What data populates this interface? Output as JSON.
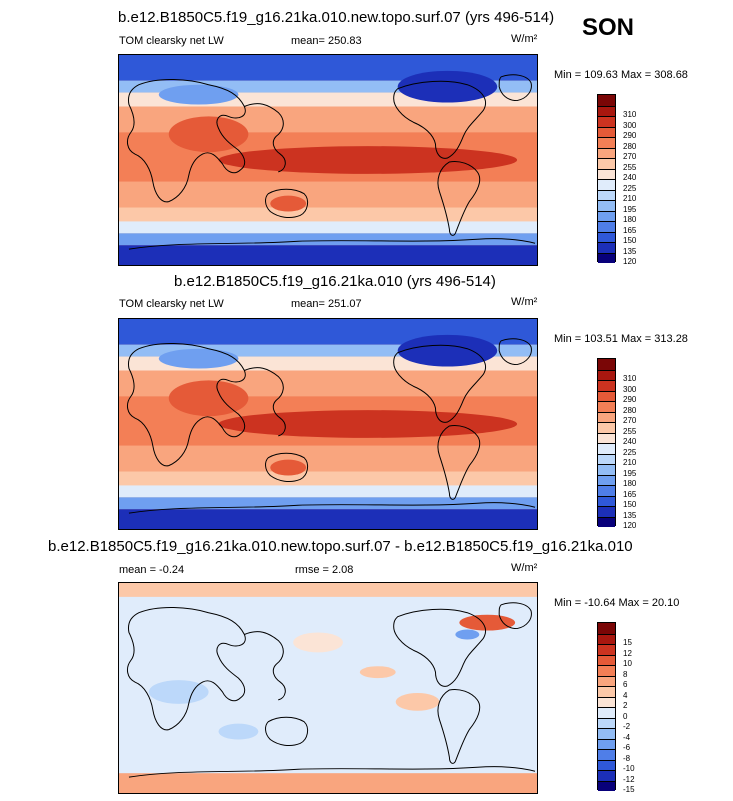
{
  "season": "SON",
  "panels": [
    {
      "title": "b.e12.B1850C5.f19_g16.21ka.010.new.topo.surf.07 (yrs 496-514)",
      "left_label": "TOM clearsky net LW",
      "stat_label": "mean= 250.83",
      "extra_label": "",
      "units": "W/m²",
      "minmax": "Min = 109.63 Max = 308.68"
    },
    {
      "title": "b.e12.B1850C5.f19_g16.21ka.010 (yrs 496-514)",
      "left_label": "TOM clearsky net LW",
      "stat_label": "mean= 251.07",
      "extra_label": "",
      "units": "W/m²",
      "minmax": "Min = 103.51 Max = 313.28"
    },
    {
      "title": "b.e12.B1850C5.f19_g16.21ka.010.new.topo.surf.07 - b.e12.B1850C5.f19_g16.21ka.010",
      "left_label": "mean =  -0.24",
      "stat_label": "rmse =   2.08",
      "extra_label": "",
      "units": "W/m²",
      "minmax": "Min = -10.64 Max = 20.10"
    }
  ],
  "chart_data": [
    {
      "type": "heatmap",
      "title": "b.e12.B1850C5.f19_g16.21ka.010.new.topo.surf.07 (yrs 496-514)",
      "variable": "TOM clearsky net LW",
      "units": "W/m²",
      "mean": 250.83,
      "min": 109.63,
      "max": 308.68,
      "levels": [
        120,
        135,
        150,
        165,
        180,
        195,
        210,
        225,
        240,
        255,
        270,
        280,
        290,
        300,
        310
      ],
      "colors": [
        "#08007a",
        "#1c2fb8",
        "#2f58d8",
        "#4f7ee8",
        "#6f9ff0",
        "#93bdf5",
        "#bcd8fa",
        "#e0ecfb",
        "#fbe4d6",
        "#fcc8a8",
        "#f9a57e",
        "#f37f56",
        "#e55a38",
        "#cc3320",
        "#a8170f",
        "#7a0606"
      ]
    },
    {
      "type": "heatmap",
      "title": "b.e12.B1850C5.f19_g16.21ka.010 (yrs 496-514)",
      "variable": "TOM clearsky net LW",
      "units": "W/m²",
      "mean": 251.07,
      "min": 103.51,
      "max": 313.28,
      "levels": [
        120,
        135,
        150,
        165,
        180,
        195,
        210,
        225,
        240,
        255,
        270,
        280,
        290,
        300,
        310
      ],
      "colors": [
        "#08007a",
        "#1c2fb8",
        "#2f58d8",
        "#4f7ee8",
        "#6f9ff0",
        "#93bdf5",
        "#bcd8fa",
        "#e0ecfb",
        "#fbe4d6",
        "#fcc8a8",
        "#f9a57e",
        "#f37f56",
        "#e55a38",
        "#cc3320",
        "#a8170f",
        "#7a0606"
      ]
    },
    {
      "type": "heatmap",
      "title": "b.e12.B1850C5.f19_g16.21ka.010.new.topo.surf.07 - b.e12.B1850C5.f19_g16.21ka.010",
      "units": "W/m²",
      "mean": -0.24,
      "rmse": 2.08,
      "min": -10.64,
      "max": 20.1,
      "levels": [
        -15,
        -12,
        -10,
        -8,
        -6,
        -4,
        -2,
        0,
        2,
        4,
        6,
        8,
        10,
        12,
        15
      ],
      "colors": [
        "#08007a",
        "#1c2fb8",
        "#2f58d8",
        "#4f7ee8",
        "#6f9ff0",
        "#93bdf5",
        "#bcd8fa",
        "#e0ecfb",
        "#fbe4d6",
        "#fcc8a8",
        "#f9a57e",
        "#f37f56",
        "#e55a38",
        "#cc3320",
        "#a8170f",
        "#7a0606"
      ]
    }
  ]
}
